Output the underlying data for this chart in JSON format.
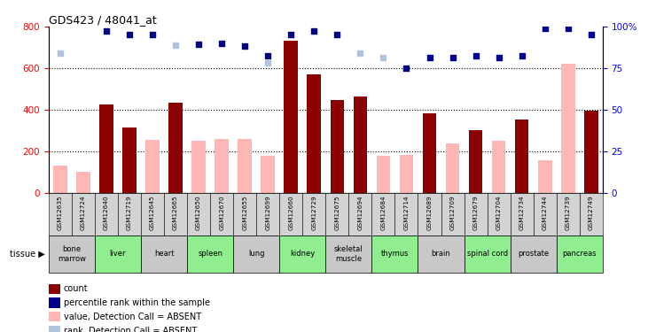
{
  "title": "GDS423 / 48041_at",
  "samples": [
    "GSM12635",
    "GSM12724",
    "GSM12640",
    "GSM12719",
    "GSM12645",
    "GSM12665",
    "GSM12650",
    "GSM12670",
    "GSM12655",
    "GSM12699",
    "GSM12660",
    "GSM12729",
    "GSM12675",
    "GSM12694",
    "GSM12684",
    "GSM12714",
    "GSM12689",
    "GSM12709",
    "GSM12679",
    "GSM12704",
    "GSM12734",
    "GSM12744",
    "GSM12739",
    "GSM12749"
  ],
  "tissue_groups": [
    {
      "label": "bone\nmarrow",
      "start": 0,
      "end": 2,
      "color": "#c8c8c8"
    },
    {
      "label": "liver",
      "start": 2,
      "end": 4,
      "color": "#90ee90"
    },
    {
      "label": "heart",
      "start": 4,
      "end": 6,
      "color": "#c8c8c8"
    },
    {
      "label": "spleen",
      "start": 6,
      "end": 8,
      "color": "#90ee90"
    },
    {
      "label": "lung",
      "start": 8,
      "end": 10,
      "color": "#c8c8c8"
    },
    {
      "label": "kidney",
      "start": 10,
      "end": 12,
      "color": "#90ee90"
    },
    {
      "label": "skeletal\nmuscle",
      "start": 12,
      "end": 14,
      "color": "#c8c8c8"
    },
    {
      "label": "thymus",
      "start": 14,
      "end": 16,
      "color": "#90ee90"
    },
    {
      "label": "brain",
      "start": 16,
      "end": 18,
      "color": "#c8c8c8"
    },
    {
      "label": "spinal cord",
      "start": 18,
      "end": 20,
      "color": "#90ee90"
    },
    {
      "label": "prostate",
      "start": 20,
      "end": 22,
      "color": "#c8c8c8"
    },
    {
      "label": "pancreas",
      "start": 22,
      "end": 24,
      "color": "#90ee90"
    }
  ],
  "count_values": [
    null,
    null,
    425,
    315,
    null,
    435,
    null,
    null,
    null,
    null,
    730,
    570,
    445,
    465,
    null,
    null,
    380,
    null,
    300,
    null,
    350,
    null,
    null,
    395
  ],
  "absent_value_values": [
    130,
    100,
    null,
    null,
    255,
    null,
    250,
    260,
    260,
    175,
    null,
    null,
    null,
    null,
    175,
    180,
    null,
    235,
    null,
    250,
    null,
    155,
    620,
    null
  ],
  "rank_values": [
    null,
    null,
    780,
    760,
    760,
    null,
    715,
    720,
    705,
    660,
    760,
    780,
    760,
    null,
    null,
    600,
    650,
    650,
    660,
    650,
    660,
    790,
    790,
    760
  ],
  "absent_rank_values": [
    670,
    null,
    null,
    null,
    null,
    710,
    null,
    null,
    null,
    625,
    null,
    null,
    null,
    670,
    650,
    null,
    null,
    null,
    null,
    null,
    null,
    null,
    null,
    null
  ],
  "ylim": [
    0,
    800
  ],
  "yticks_left": [
    0,
    200,
    400,
    600,
    800
  ],
  "yticks_right": [
    0,
    25,
    50,
    75,
    100
  ],
  "bar_width": 0.6,
  "color_count": "#8b0000",
  "color_absent_value": "#ffb6b6",
  "color_rank": "#00008b",
  "color_absent_rank": "#b0c4de",
  "bg_color": "#ffffff",
  "sample_bg": "#d3d3d3",
  "grid_color": "#000000",
  "grid_yticks": [
    200,
    400,
    600
  ]
}
